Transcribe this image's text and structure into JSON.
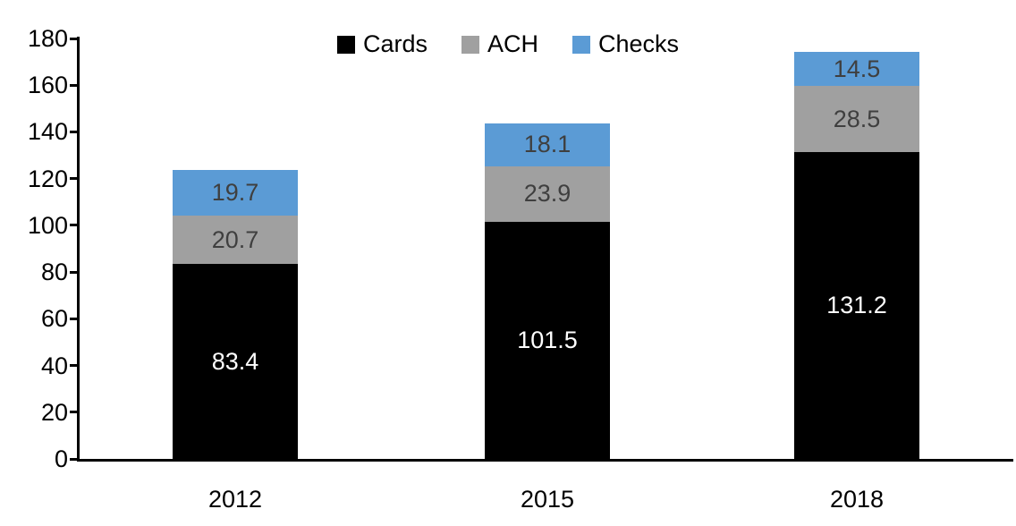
{
  "chart_data": {
    "type": "bar",
    "stacked": true,
    "title": "",
    "xlabel": "",
    "ylabel": "",
    "categories": [
      "2012",
      "2015",
      "2018"
    ],
    "series": [
      {
        "name": "Cards",
        "color": "#000000",
        "label_color": "#ffffff",
        "values": [
          83.4,
          101.5,
          131.2
        ]
      },
      {
        "name": "ACH",
        "color": "#a0a0a0",
        "label_color": "#3f3f3f",
        "values": [
          20.7,
          23.9,
          28.5
        ]
      },
      {
        "name": "Checks",
        "color": "#5b9bd5",
        "label_color": "#3f3f3f",
        "values": [
          19.7,
          18.1,
          14.5
        ]
      }
    ],
    "ylim": [
      0,
      180
    ],
    "ytick_step": 20,
    "ytick_labels": [
      "0",
      "20",
      "40",
      "60",
      "80",
      "100",
      "120",
      "140",
      "160",
      "180"
    ],
    "grid": false,
    "legend_position": "top-center",
    "axis_color": "#000000",
    "background_color": "#ffffff",
    "bar_totals": [
      123.8,
      143.5,
      174.2
    ]
  }
}
